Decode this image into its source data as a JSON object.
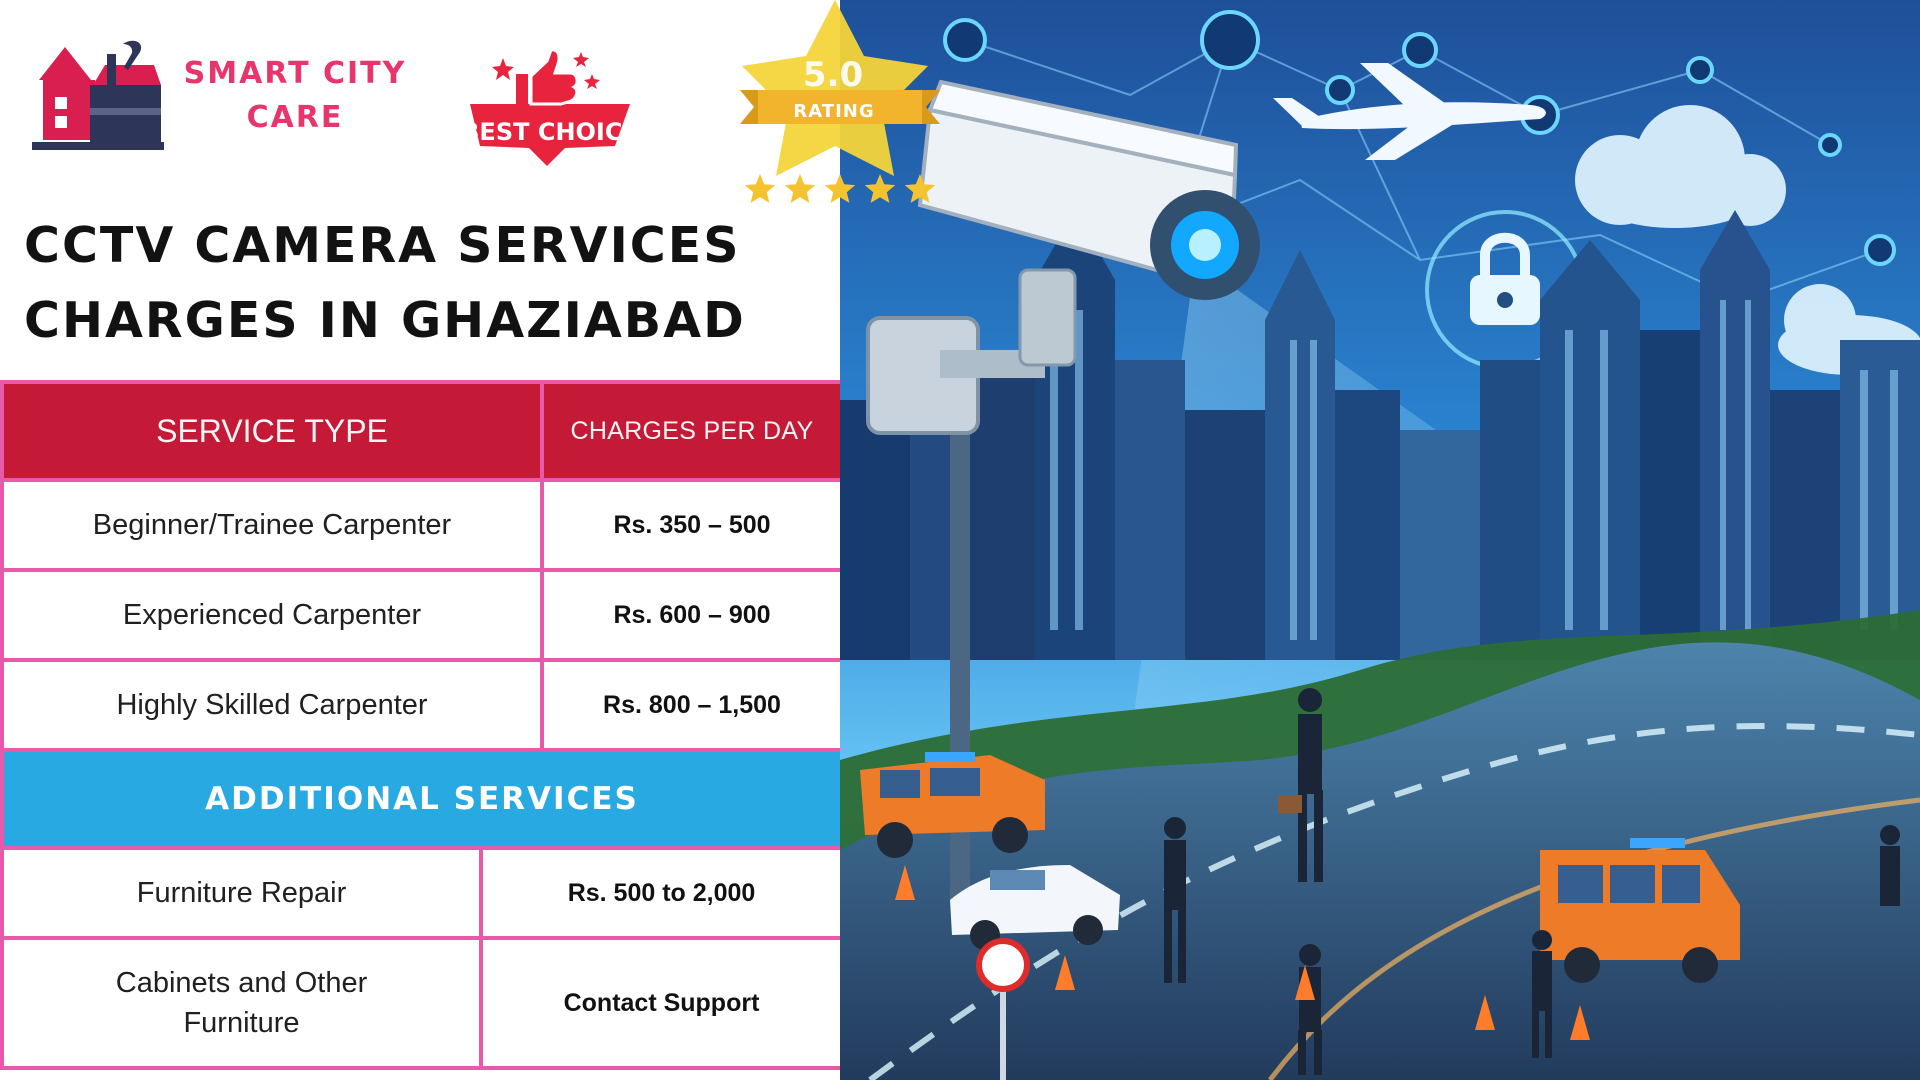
{
  "brand": {
    "line1": "SMART CITY",
    "line2": "CARE",
    "accent_color": "#e8356b",
    "mark_color": "#d91f50",
    "icon": "house-toolbox-wrench-icon"
  },
  "badges": {
    "best_choice": {
      "label": "BEST CHOICE",
      "color": "#e8233d",
      "icon": "thumbs-up-icon"
    },
    "rating": {
      "value": "5.0",
      "label": "RATING",
      "stars": 5,
      "max_stars": 5,
      "color": "#f4c430"
    }
  },
  "title": {
    "line1": "CCTV CAMERA SERVICES",
    "line2": "CHARGES IN GHAZIABAD"
  },
  "table": {
    "colors": {
      "header": "#c41a37",
      "border": "#e85aa9",
      "section": "#28a9e1"
    },
    "headers": [
      "SERVICE TYPE",
      "CHARGES PER DAY"
    ],
    "rows": [
      {
        "service": "Beginner/Trainee Carpenter",
        "charge": "Rs. 350 – 500"
      },
      {
        "service": "Experienced Carpenter",
        "charge": "Rs. 600 – 900"
      },
      {
        "service": "Highly Skilled Carpenter",
        "charge": "Rs. 800 – 1,500"
      }
    ],
    "additional_heading": "ADDITIONAL SERVICES",
    "additional_rows": [
      {
        "service": "Furniture Repair",
        "charge": "Rs. 500 to 2,000"
      },
      {
        "service_line1": "Cabinets and Other",
        "service_line2": "Furniture",
        "charge": "Contact Support"
      }
    ]
  },
  "illustration": {
    "subject": "security-camera-over-city-skyline",
    "icons": [
      "security-camera-icon",
      "airplane-icon",
      "cloud-icon",
      "lock-icon",
      "network-node-icon",
      "vehicle-icon",
      "security-guard-icon"
    ],
    "colors": {
      "sky": "#1f4f99",
      "glow": "#40b4ff",
      "road": "#2f5177",
      "vehicle": "#ee7b28"
    }
  }
}
